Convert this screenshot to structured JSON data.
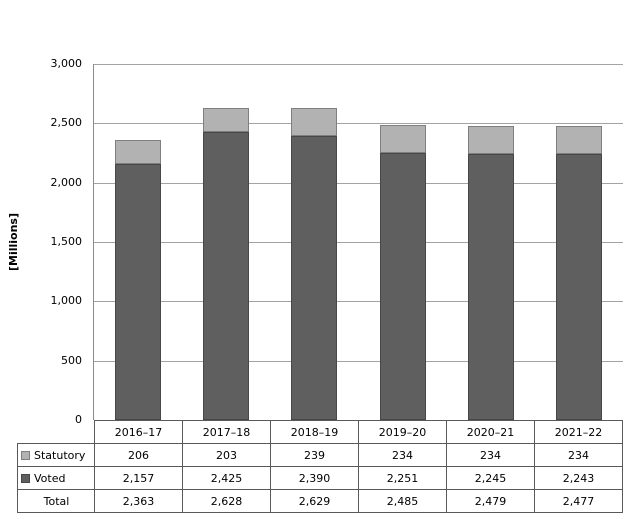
{
  "chart_data": {
    "type": "bar",
    "stacked": true,
    "title": "",
    "xlabel": "",
    "ylabel": "[Millions]",
    "categories": [
      "2016–17",
      "2017–18",
      "2018–19",
      "2019–20",
      "2020–21",
      "2021–22"
    ],
    "series": [
      {
        "name": "Statutory",
        "values": [
          206,
          203,
          239,
          234,
          234,
          234
        ],
        "color": "#b2b2b2",
        "border_color": "#7f7f7f"
      },
      {
        "name": "Voted",
        "values": [
          2157,
          2425,
          2390,
          2251,
          2245,
          2243
        ],
        "color": "#5f5f5f",
        "border_color": "#474747"
      }
    ],
    "stack_bottom_to_top": [
      "Voted",
      "Statutory"
    ],
    "total": {
      "label": "Total",
      "values": [
        2363,
        2628,
        2629,
        2485,
        2479,
        2477
      ]
    },
    "ylim": [
      0,
      3000
    ],
    "ytick_interval": 500,
    "grid": true,
    "gridline_color": "#a3a3a3",
    "legend_position": "data-table-left-column"
  }
}
